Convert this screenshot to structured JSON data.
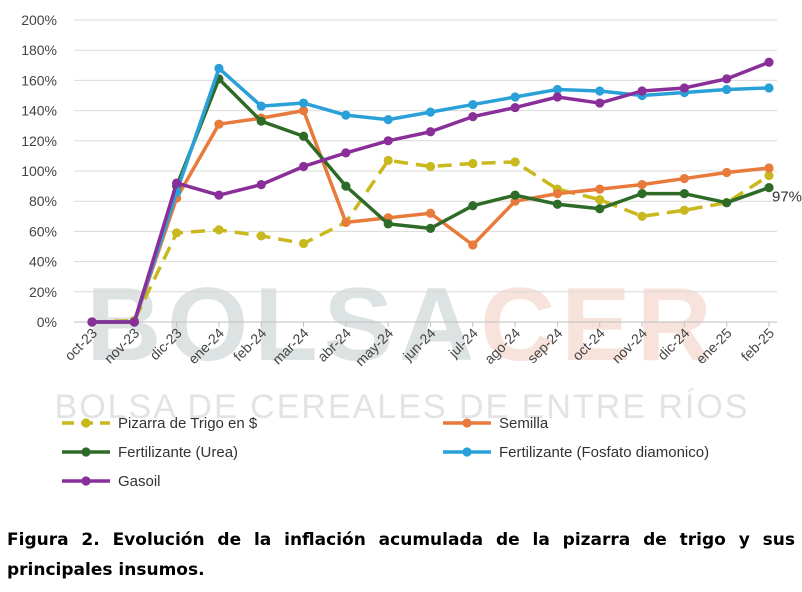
{
  "chart_data": {
    "type": "line",
    "title": "",
    "xlabel": "",
    "ylabel": "",
    "ylim": [
      0,
      200
    ],
    "y_tick_step": 20,
    "y_tick_labels": [
      "0%",
      "20%",
      "40%",
      "60%",
      "80%",
      "100%",
      "120%",
      "140%",
      "160%",
      "180%",
      "200%"
    ],
    "grid": true,
    "legend_position": "bottom",
    "categories": [
      "oct-23",
      "nov-23",
      "dic-23",
      "ene-24",
      "feb-24",
      "mar-24",
      "abr-24",
      "may-24",
      "jun-24",
      "jul-24",
      "ago-24",
      "sep-24",
      "oct-24",
      "nov-24",
      "dic-24",
      "ene-25",
      "feb-25"
    ],
    "series": [
      {
        "name": "Pizarra de Trigo en $",
        "color": "#c9b81e",
        "dashed": true,
        "values": [
          0,
          1,
          59,
          61,
          57,
          52,
          66,
          107,
          103,
          105,
          106,
          88,
          81,
          70,
          74,
          79,
          97
        ]
      },
      {
        "name": "Semilla",
        "color": "#e87a3c",
        "dashed": false,
        "values": [
          0,
          0,
          82,
          131,
          135,
          140,
          66,
          69,
          72,
          51,
          80,
          85,
          88,
          91,
          95,
          99,
          102
        ]
      },
      {
        "name": "Fertilizante (Urea)",
        "color": "#2f6b28",
        "dashed": false,
        "values": [
          0,
          0,
          90,
          161,
          133,
          123,
          90,
          65,
          62,
          77,
          84,
          78,
          75,
          85,
          85,
          79,
          89
        ]
      },
      {
        "name": "Fertilizante (Fosfato diamonico)",
        "color": "#2aa0d8",
        "dashed": false,
        "values": [
          0,
          0,
          86,
          168,
          143,
          145,
          137,
          134,
          139,
          144,
          149,
          154,
          153,
          150,
          152,
          154,
          155
        ]
      },
      {
        "name": "Gasoil",
        "color": "#8a2f9a",
        "dashed": false,
        "values": [
          0,
          0,
          92,
          84,
          91,
          103,
          112,
          120,
          126,
          136,
          142,
          149,
          145,
          153,
          155,
          161,
          172
        ]
      }
    ],
    "annotations": [
      {
        "text": "97%",
        "series": "Pizarra de Trigo en $",
        "category": "feb-25"
      }
    ]
  },
  "watermark": {
    "part1": "BOLSA",
    "part2": "CER",
    "part1_color": "#dde3e3",
    "part2_color": "#f7e3dc",
    "subtitle": "BOLSA DE CEREALES DE ENTRE RÍOS"
  },
  "caption": "Figura 2. Evolución de la inflación acumulada de la pizarra de trigo y sus principales insumos."
}
